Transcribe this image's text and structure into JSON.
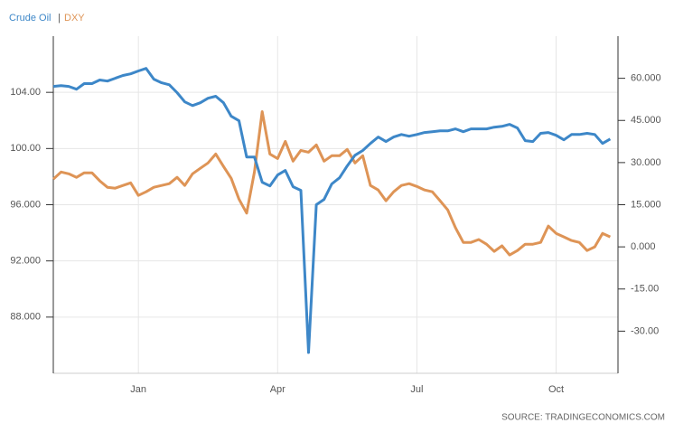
{
  "chart_data": {
    "type": "line",
    "legend_separator": "|",
    "source": "SOURCE: TRADINGECONOMICS.COM",
    "categories": [
      null,
      null,
      null,
      null,
      null,
      null,
      null,
      null,
      null,
      null,
      null,
      "Jan",
      null,
      null,
      null,
      null,
      null,
      null,
      null,
      null,
      null,
      null,
      null,
      null,
      null,
      null,
      null,
      null,
      null,
      "Apr",
      null,
      null,
      null,
      null,
      null,
      null,
      null,
      null,
      null,
      null,
      null,
      null,
      null,
      null,
      null,
      null,
      null,
      "Jul",
      null,
      null,
      null,
      null,
      null,
      null,
      null,
      null,
      null,
      null,
      null,
      null,
      null,
      null,
      null,
      null,
      null,
      "Oct",
      null,
      null,
      null,
      null,
      null,
      null,
      null
    ],
    "ylim": [
      84,
      108
    ],
    "yticks": [
      {
        "value": 104,
        "label": "104.00"
      },
      {
        "value": 100,
        "label": "100.00"
      },
      {
        "value": 96,
        "label": "96.000"
      },
      {
        "value": 92,
        "label": "92.000"
      },
      {
        "value": 88,
        "label": "88.000"
      }
    ],
    "y2lim": [
      -45,
      75
    ],
    "y2ticks": [
      {
        "value": 60,
        "label": "60.000"
      },
      {
        "value": 45,
        "label": "45.000"
      },
      {
        "value": 30,
        "label": "30.000"
      },
      {
        "value": 15,
        "label": "15.000"
      },
      {
        "value": 0,
        "label": "0.000"
      },
      {
        "value": -15,
        "label": "-15.00"
      },
      {
        "value": -30,
        "label": "-30.00"
      }
    ],
    "grid": true,
    "series": [
      {
        "name": "Crude Oil",
        "color": "#3d87c8",
        "axis": "y2",
        "values": [
          57.1,
          57.4,
          57.1,
          56.1,
          58.1,
          58.1,
          59.4,
          59.0,
          60,
          61,
          61.6,
          62.6,
          63.5,
          59.7,
          58.4,
          57.7,
          54.9,
          51.6,
          50.3,
          51.3,
          52.9,
          53.6,
          51.3,
          46.5,
          44.9,
          32,
          32,
          23,
          21.7,
          25.6,
          27.2,
          21.4,
          20.1,
          -37.6,
          15,
          16.9,
          22.4,
          24.6,
          28.8,
          32.6,
          34.3,
          36.8,
          39.1,
          37.5,
          39.1,
          40,
          39.4,
          40,
          40.7,
          41,
          41.3,
          41.3,
          42,
          41,
          42,
          42,
          42,
          42.6,
          42.9,
          43.6,
          42.3,
          37.8,
          37.5,
          40.4,
          40.7,
          39.7,
          38.1,
          40,
          40,
          40.4,
          40,
          36.8,
          38.4
        ]
      },
      {
        "name": "DXY",
        "color": "#de9456",
        "values": [
          97.82,
          98.33,
          98.2,
          97.95,
          98.27,
          98.27,
          97.7,
          97.24,
          97.18,
          97.37,
          97.56,
          96.66,
          96.92,
          97.24,
          97.37,
          97.5,
          97.95,
          97.37,
          98.2,
          98.59,
          98.97,
          99.61,
          98.72,
          97.88,
          96.4,
          95.4,
          98.33,
          102.63,
          99.61,
          99.29,
          100.51,
          99.1,
          99.87,
          99.74,
          100.26,
          99.1,
          99.49,
          99.49,
          99.94,
          98.97,
          99.49,
          97.37,
          97.05,
          96.28,
          96.92,
          97.37,
          97.5,
          97.3,
          97.05,
          96.92,
          96.28,
          95.63,
          94.35,
          93.32,
          93.32,
          93.52,
          93.19,
          92.68,
          93.07,
          92.42,
          92.74,
          93.19,
          93.19,
          93.32,
          94.48,
          93.96,
          93.71,
          93.45,
          93.32,
          92.74,
          93.0,
          93.96,
          93.71
        ]
      }
    ]
  }
}
